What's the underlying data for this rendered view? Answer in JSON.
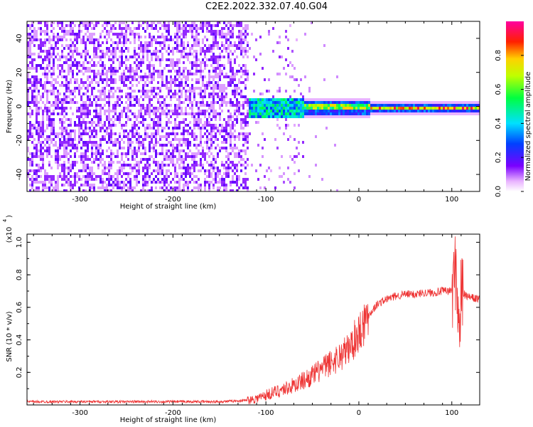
{
  "title": "C2E2.2022.332.07.40.G04",
  "chart_data": [
    {
      "type": "heatmap",
      "xlabel": "Height of straight line (km)",
      "ylabel": "Frequency (Hz)",
      "xlim": [
        -357,
        130
      ],
      "ylim": [
        -50,
        50
      ],
      "xticks": [
        -300,
        -200,
        -100,
        0,
        100
      ],
      "yticks": [
        -40,
        -20,
        0,
        20,
        40
      ],
      "colorbar": {
        "label": "Normalized spectral amplitude",
        "range": [
          0,
          1
        ],
        "ticks": [
          0.0,
          0.2,
          0.4,
          0.6,
          0.8
        ]
      },
      "description_of_regions": [
        {
          "x_range": [
            -357,
            -120
          ],
          "pattern": "broadband noise across all frequencies",
          "amplitude": 0.15
        },
        {
          "x_range": [
            -120,
            10
          ],
          "pattern": "signal emerging near 0 Hz with scattered noise",
          "amplitude": 0.45
        },
        {
          "x_range": [
            10,
            130
          ],
          "pattern": "narrow strong line near 0 Hz",
          "amplitude": 0.85
        }
      ]
    },
    {
      "type": "line",
      "xlabel": "Height of straight line (km)",
      "ylabel": "SNR (10 * v/v)",
      "yscale_label": "(x10",
      "yscale_exp": "4",
      "xlim": [
        -357,
        130
      ],
      "ylim": [
        0,
        1.05
      ],
      "xticks": [
        -300,
        -200,
        -100,
        0,
        100
      ],
      "yticks": [
        0.2,
        0.4,
        0.6,
        0.8,
        1.0
      ],
      "series": [
        {
          "color": "#ee3333",
          "x": [
            -357,
            -300,
            -250,
            -200,
            -150,
            -130,
            -120,
            -110,
            -100,
            -90,
            -80,
            -70,
            -60,
            -50,
            -40,
            -30,
            -20,
            -10,
            0,
            10,
            20,
            30,
            40,
            50,
            60,
            70,
            80,
            90,
            100,
            105,
            108,
            110,
            115,
            120,
            130
          ],
          "values": [
            0.02,
            0.02,
            0.02,
            0.02,
            0.02,
            0.025,
            0.03,
            0.04,
            0.06,
            0.08,
            0.1,
            0.12,
            0.15,
            0.18,
            0.22,
            0.26,
            0.3,
            0.35,
            0.45,
            0.55,
            0.62,
            0.65,
            0.67,
            0.68,
            0.68,
            0.69,
            0.69,
            0.7,
            0.7,
            0.85,
            0.4,
            0.7,
            0.67,
            0.66,
            0.65
          ]
        }
      ]
    }
  ]
}
